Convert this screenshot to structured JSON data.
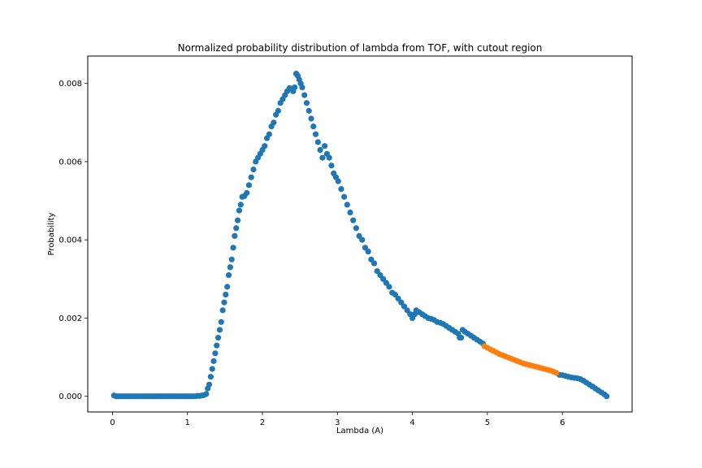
{
  "chart_data": {
    "type": "scatter",
    "title": "Normalized probability distribution of lambda from TOF, with cutout region",
    "xlabel": "Lambda (A)",
    "ylabel": "Probability",
    "xlim": [
      -0.33,
      6.93
    ],
    "ylim": [
      -0.0004,
      0.0087
    ],
    "xticks": [
      0,
      1,
      2,
      3,
      4,
      5,
      6
    ],
    "xtick_labels": [
      "0",
      "1",
      "2",
      "3",
      "4",
      "5",
      "6"
    ],
    "yticks": [
      0.0,
      0.002,
      0.004,
      0.006,
      0.008
    ],
    "ytick_labels": [
      "0.000",
      "0.002",
      "0.004",
      "0.006",
      "0.008"
    ],
    "grid": false,
    "legend": "none",
    "colors": {
      "main": "#1f77b4",
      "cutout": "#ff7f0e"
    },
    "series": [
      {
        "color": "#1f77b4",
        "points": [
          [
            0.02,
            2e-05
          ],
          [
            0.05,
            0.0
          ],
          [
            0.08,
            0.0
          ],
          [
            0.11,
            0.0
          ],
          [
            0.14,
            0.0
          ],
          [
            0.17,
            0.0
          ],
          [
            0.2,
            0.0
          ],
          [
            0.23,
            0.0
          ],
          [
            0.26,
            0.0
          ],
          [
            0.29,
            0.0
          ],
          [
            0.32,
            0.0
          ],
          [
            0.35,
            0.0
          ],
          [
            0.38,
            0.0
          ],
          [
            0.41,
            0.0
          ],
          [
            0.44,
            0.0
          ],
          [
            0.47,
            0.0
          ],
          [
            0.5,
            0.0
          ],
          [
            0.53,
            0.0
          ],
          [
            0.56,
            0.0
          ],
          [
            0.59,
            0.0
          ],
          [
            0.62,
            0.0
          ],
          [
            0.65,
            0.0
          ],
          [
            0.68,
            0.0
          ],
          [
            0.71,
            0.0
          ],
          [
            0.74,
            0.0
          ],
          [
            0.77,
            0.0
          ],
          [
            0.8,
            0.0
          ],
          [
            0.83,
            0.0
          ],
          [
            0.86,
            0.0
          ],
          [
            0.89,
            0.0
          ],
          [
            0.92,
            0.0
          ],
          [
            0.95,
            0.0
          ],
          [
            0.98,
            0.0
          ],
          [
            1.01,
            0.0
          ],
          [
            1.04,
            0.0
          ],
          [
            1.07,
            0.0
          ],
          [
            1.1,
            0.0
          ],
          [
            1.13,
            1e-05
          ],
          [
            1.16,
            1e-05
          ],
          [
            1.19,
            2e-05
          ],
          [
            1.22,
            3e-05
          ],
          [
            1.25,
            6e-05
          ],
          [
            1.27,
            0.0002
          ],
          [
            1.29,
            0.0003
          ],
          [
            1.31,
            0.0005
          ],
          [
            1.33,
            0.0007
          ],
          [
            1.35,
            0.0009
          ],
          [
            1.37,
            0.0011
          ],
          [
            1.39,
            0.0013
          ],
          [
            1.41,
            0.0015
          ],
          [
            1.43,
            0.0017
          ],
          [
            1.45,
            0.0019
          ],
          [
            1.47,
            0.0022
          ],
          [
            1.49,
            0.0024
          ],
          [
            1.51,
            0.0026
          ],
          [
            1.53,
            0.0028
          ],
          [
            1.55,
            0.0031
          ],
          [
            1.57,
            0.0033
          ],
          [
            1.59,
            0.0035
          ],
          [
            1.61,
            0.0038
          ],
          [
            1.63,
            0.0041
          ],
          [
            1.65,
            0.0043
          ],
          [
            1.67,
            0.0045
          ],
          [
            1.69,
            0.00475
          ],
          [
            1.71,
            0.0049
          ],
          [
            1.73,
            0.0051
          ],
          [
            1.76,
            0.00512
          ],
          [
            1.79,
            0.0052
          ],
          [
            1.82,
            0.0054
          ],
          [
            1.85,
            0.0056
          ],
          [
            1.88,
            0.0058
          ],
          [
            1.91,
            0.006
          ],
          [
            1.94,
            0.0061
          ],
          [
            1.97,
            0.0062
          ],
          [
            2.0,
            0.0063
          ],
          [
            2.03,
            0.0064
          ],
          [
            2.06,
            0.0066
          ],
          [
            2.09,
            0.0067
          ],
          [
            2.12,
            0.0069
          ],
          [
            2.15,
            0.007
          ],
          [
            2.18,
            0.0072
          ],
          [
            2.21,
            0.0073
          ],
          [
            2.24,
            0.0075
          ],
          [
            2.27,
            0.0076
          ],
          [
            2.3,
            0.0077
          ],
          [
            2.33,
            0.0078
          ],
          [
            2.36,
            0.00788
          ],
          [
            2.39,
            0.00787
          ],
          [
            2.41,
            0.0078
          ],
          [
            2.43,
            0.0079
          ],
          [
            2.45,
            0.00825
          ],
          [
            2.47,
            0.0082
          ],
          [
            2.49,
            0.0081
          ],
          [
            2.51,
            0.008
          ],
          [
            2.53,
            0.0079
          ],
          [
            2.56,
            0.0077
          ],
          [
            2.59,
            0.0075
          ],
          [
            2.62,
            0.0073
          ],
          [
            2.65,
            0.0071
          ],
          [
            2.68,
            0.0069
          ],
          [
            2.71,
            0.0067
          ],
          [
            2.74,
            0.0065
          ],
          [
            2.77,
            0.0063
          ],
          [
            2.8,
            0.0061
          ],
          [
            2.83,
            0.0064
          ],
          [
            2.86,
            0.0062
          ],
          [
            2.89,
            0.0061
          ],
          [
            2.92,
            0.0059
          ],
          [
            2.95,
            0.0057
          ],
          [
            2.98,
            0.0056
          ],
          [
            3.01,
            0.0055
          ],
          [
            3.05,
            0.0053
          ],
          [
            3.09,
            0.0051
          ],
          [
            3.13,
            0.0049
          ],
          [
            3.17,
            0.0047
          ],
          [
            3.21,
            0.0045
          ],
          [
            3.25,
            0.0043
          ],
          [
            3.29,
            0.0041
          ],
          [
            3.33,
            0.004
          ],
          [
            3.37,
            0.0038
          ],
          [
            3.41,
            0.0037
          ],
          [
            3.45,
            0.0035
          ],
          [
            3.49,
            0.0034
          ],
          [
            3.53,
            0.0032
          ],
          [
            3.57,
            0.0031
          ],
          [
            3.61,
            0.003
          ],
          [
            3.65,
            0.0029
          ],
          [
            3.69,
            0.0028
          ],
          [
            3.73,
            0.00265
          ],
          [
            3.77,
            0.0026
          ],
          [
            3.81,
            0.0025
          ],
          [
            3.85,
            0.0024
          ],
          [
            3.89,
            0.0023
          ],
          [
            3.93,
            0.0022
          ],
          [
            3.97,
            0.0021
          ],
          [
            4.0,
            0.002
          ],
          [
            4.03,
            0.0021
          ],
          [
            4.05,
            0.0022
          ],
          [
            4.09,
            0.00215
          ],
          [
            4.13,
            0.0021
          ],
          [
            4.17,
            0.00205
          ],
          [
            4.21,
            0.002
          ],
          [
            4.25,
            0.00198
          ],
          [
            4.29,
            0.00195
          ],
          [
            4.33,
            0.0019
          ],
          [
            4.37,
            0.00188
          ],
          [
            4.41,
            0.00185
          ],
          [
            4.45,
            0.0018
          ],
          [
            4.49,
            0.00175
          ],
          [
            4.53,
            0.0017
          ],
          [
            4.57,
            0.00165
          ],
          [
            4.61,
            0.0016
          ],
          [
            4.63,
            0.0015
          ],
          [
            4.65,
            0.0015
          ],
          [
            4.67,
            0.0017
          ],
          [
            4.7,
            0.00165
          ],
          [
            4.74,
            0.0016
          ],
          [
            4.78,
            0.00155
          ],
          [
            4.82,
            0.0015
          ],
          [
            4.86,
            0.00145
          ],
          [
            4.9,
            0.0014
          ],
          [
            4.94,
            0.00135
          ],
          [
            5.96,
            0.00055
          ],
          [
            6.0,
            0.00054
          ],
          [
            6.04,
            0.00052
          ],
          [
            6.08,
            0.0005
          ],
          [
            6.12,
            0.00048
          ],
          [
            6.16,
            0.00047
          ],
          [
            6.2,
            0.00046
          ],
          [
            6.24,
            0.00044
          ],
          [
            6.28,
            0.0004
          ],
          [
            6.32,
            0.00035
          ],
          [
            6.36,
            0.0003
          ],
          [
            6.4,
            0.00025
          ],
          [
            6.44,
            0.0002
          ],
          [
            6.48,
            0.00015
          ],
          [
            6.52,
            0.0001
          ],
          [
            6.56,
            5e-05
          ],
          [
            6.59,
            0.0
          ]
        ]
      },
      {
        "color": "#ff7f0e",
        "points": [
          [
            4.96,
            0.00128
          ],
          [
            5.0,
            0.00124
          ],
          [
            5.04,
            0.0012
          ],
          [
            5.08,
            0.00116
          ],
          [
            5.12,
            0.00112
          ],
          [
            5.16,
            0.00108
          ],
          [
            5.2,
            0.00105
          ],
          [
            5.24,
            0.00102
          ],
          [
            5.28,
            0.00099
          ],
          [
            5.32,
            0.00096
          ],
          [
            5.36,
            0.00093
          ],
          [
            5.4,
            0.0009
          ],
          [
            5.44,
            0.00087
          ],
          [
            5.48,
            0.00084
          ],
          [
            5.52,
            0.00082
          ],
          [
            5.56,
            0.0008
          ],
          [
            5.6,
            0.00078
          ],
          [
            5.64,
            0.00076
          ],
          [
            5.68,
            0.00074
          ],
          [
            5.72,
            0.00072
          ],
          [
            5.76,
            0.0007
          ],
          [
            5.8,
            0.00068
          ],
          [
            5.84,
            0.00066
          ],
          [
            5.88,
            0.00063
          ],
          [
            5.92,
            0.0006
          ]
        ]
      }
    ]
  }
}
